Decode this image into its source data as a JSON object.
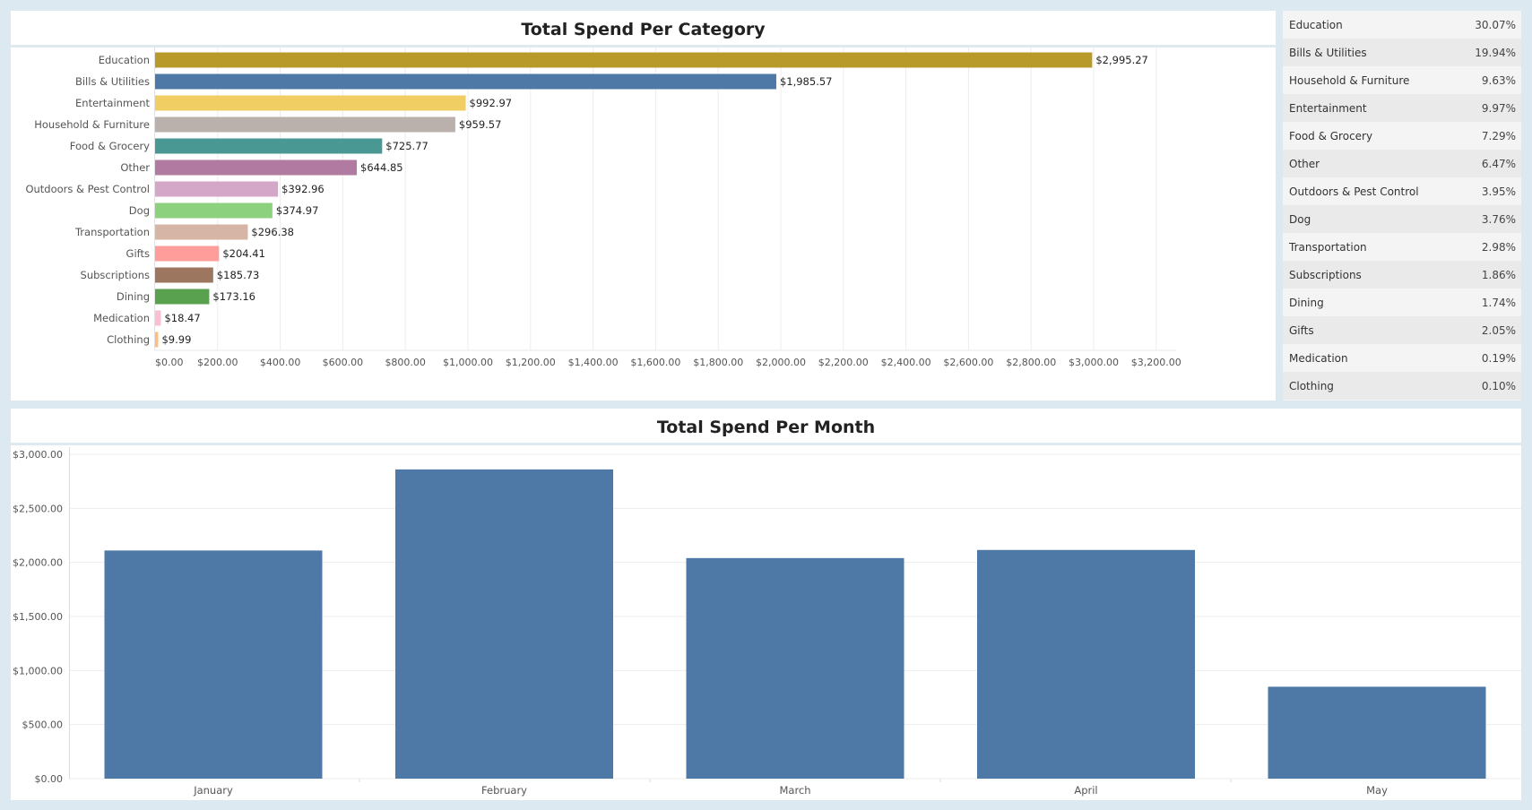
{
  "category_chart": {
    "title": "Total Spend Per Category"
  },
  "month_chart": {
    "title": "Total Spend Per Month"
  },
  "pct_table": {
    "rows": [
      {
        "label": "Education",
        "value": "30.07%"
      },
      {
        "label": "Bills & Utilities",
        "value": "19.94%"
      },
      {
        "label": "Household & Furniture",
        "value": "9.63%"
      },
      {
        "label": "Entertainment",
        "value": "9.97%"
      },
      {
        "label": "Food & Grocery",
        "value": "7.29%"
      },
      {
        "label": "Other",
        "value": "6.47%"
      },
      {
        "label": "Outdoors & Pest Control",
        "value": "3.95%"
      },
      {
        "label": "Dog",
        "value": "3.76%"
      },
      {
        "label": "Transportation",
        "value": "2.98%"
      },
      {
        "label": "Subscriptions",
        "value": "1.86%"
      },
      {
        "label": "Dining",
        "value": "1.74%"
      },
      {
        "label": "Gifts",
        "value": "2.05%"
      },
      {
        "label": "Medication",
        "value": "0.19%"
      },
      {
        "label": "Clothing",
        "value": "0.10%"
      }
    ]
  },
  "chart_data": [
    {
      "type": "bar",
      "orientation": "horizontal",
      "title": "Total Spend Per Category",
      "categories": [
        "Education",
        "Bills & Utilities",
        "Entertainment",
        "Household & Furniture",
        "Food & Grocery",
        "Other",
        "Outdoors & Pest Control",
        "Dog",
        "Transportation",
        "Gifts",
        "Subscriptions",
        "Dining",
        "Medication",
        "Clothing"
      ],
      "values": [
        2995.27,
        1985.57,
        992.97,
        959.57,
        725.77,
        644.85,
        392.96,
        374.97,
        296.38,
        204.41,
        185.73,
        173.16,
        18.47,
        9.99
      ],
      "value_labels": [
        "$2,995.27",
        "$1,985.57",
        "$992.97",
        "$959.57",
        "$725.77",
        "$644.85",
        "$392.96",
        "$374.97",
        "$296.38",
        "$204.41",
        "$185.73",
        "$173.16",
        "$18.47",
        "$9.99"
      ],
      "colors": [
        "#b89a2b",
        "#4e79a7",
        "#f1ce63",
        "#bab0ac",
        "#499894",
        "#b07aa1",
        "#d4a6c8",
        "#8cd17d",
        "#d7b5a6",
        "#ff9d9a",
        "#9d7660",
        "#59a14f",
        "#fabfd2",
        "#ffbe7d"
      ],
      "xlim": [
        0,
        3300
      ],
      "x_ticks": [
        0,
        200,
        400,
        600,
        800,
        1000,
        1200,
        1400,
        1600,
        1800,
        2000,
        2200,
        2400,
        2600,
        2800,
        3000,
        3200
      ],
      "x_tick_labels": [
        "$0.00",
        "$200.00",
        "$400.00",
        "$600.00",
        "$800.00",
        "$1,000.00",
        "$1,200.00",
        "$1,400.00",
        "$1,600.00",
        "$1,800.00",
        "$2,000.00",
        "$2,200.00",
        "$2,400.00",
        "$2,600.00",
        "$2,800.00",
        "$3,000.00",
        "$3,200.00"
      ],
      "grid": true
    },
    {
      "type": "bar",
      "orientation": "vertical",
      "title": "Total Spend Per Month",
      "categories": [
        "January",
        "February",
        "March",
        "April",
        "May"
      ],
      "values": [
        2110,
        2860,
        2040,
        2115,
        850
      ],
      "color": "#4e79a7",
      "ylim": [
        0,
        3000
      ],
      "y_ticks": [
        0,
        500,
        1000,
        1500,
        2000,
        2500,
        3000
      ],
      "y_tick_labels": [
        "$0.00",
        "$500.00",
        "$1,000.00",
        "$1,500.00",
        "$2,000.00",
        "$2,500.00",
        "$3,000.00"
      ],
      "grid": true
    }
  ]
}
